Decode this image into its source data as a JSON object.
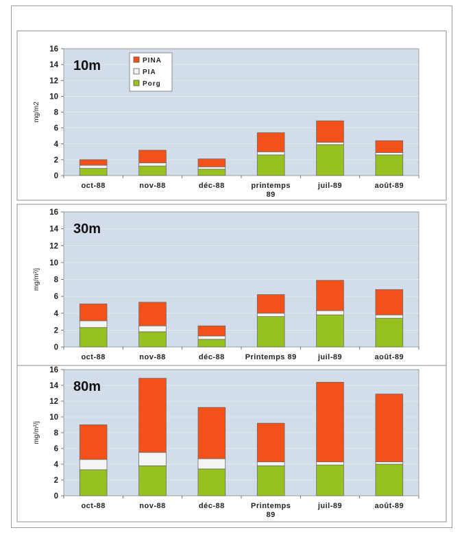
{
  "colors": {
    "PINA": "#f2511a",
    "PIA": "#f4f4f4",
    "Porg": "#97c11f",
    "plot_bg": "#d2dde9",
    "gridline": "#e6ecf3"
  },
  "chart_data": [
    {
      "type": "bar",
      "stacked": true,
      "panel_label": "10m",
      "ylabel": "mg/m2",
      "ylim": [
        0,
        16
      ],
      "yticks": [
        0,
        2,
        4,
        6,
        8,
        10,
        12,
        14,
        16
      ],
      "categories": [
        "oct-88",
        "nov-88",
        "déc-88",
        "printemps 89",
        "juil-89",
        "août-89"
      ],
      "legend": {
        "placement": "top-left",
        "entries": [
          "PINA",
          "PIA",
          "Porg"
        ]
      },
      "series": [
        {
          "name": "Porg",
          "values": [
            0.9,
            1.2,
            0.8,
            2.6,
            3.9,
            2.6
          ]
        },
        {
          "name": "PIA",
          "values": [
            0.4,
            0.4,
            0.3,
            0.4,
            0.3,
            0.3
          ]
        },
        {
          "name": "PINA",
          "values": [
            0.7,
            1.6,
            1.0,
            2.4,
            2.7,
            1.5
          ]
        }
      ]
    },
    {
      "type": "bar",
      "stacked": true,
      "panel_label": "30m",
      "ylabel": "mg/m²/j",
      "ylim": [
        0,
        16
      ],
      "yticks": [
        0,
        2,
        4,
        6,
        8,
        10,
        12,
        14,
        16
      ],
      "categories": [
        "oct-88",
        "nov-88",
        "déc-88",
        "Printemps 89",
        "juil-89",
        "août-89"
      ],
      "series": [
        {
          "name": "Porg",
          "values": [
            2.3,
            1.8,
            0.9,
            3.6,
            3.8,
            3.4
          ]
        },
        {
          "name": "PIA",
          "values": [
            0.8,
            0.7,
            0.4,
            0.4,
            0.5,
            0.4
          ]
        },
        {
          "name": "PINA",
          "values": [
            2.0,
            2.8,
            1.2,
            2.2,
            3.6,
            3.0
          ]
        }
      ]
    },
    {
      "type": "bar",
      "stacked": true,
      "panel_label": "80m",
      "ylabel": "mg/m²/j",
      "ylim": [
        0,
        16
      ],
      "yticks": [
        0,
        2,
        4,
        6,
        8,
        10,
        12,
        14,
        16
      ],
      "categories": [
        "oct-88",
        "nov-88",
        "déc-88",
        "Printemps 89",
        "juil-89",
        "août-89"
      ],
      "series": [
        {
          "name": "Porg",
          "values": [
            3.3,
            3.8,
            3.4,
            3.8,
            3.9,
            4.0
          ]
        },
        {
          "name": "PIA",
          "values": [
            1.3,
            1.7,
            1.3,
            0.5,
            0.4,
            0.3
          ]
        },
        {
          "name": "PINA",
          "values": [
            4.4,
            9.4,
            6.5,
            4.9,
            10.1,
            8.6
          ]
        }
      ]
    }
  ]
}
